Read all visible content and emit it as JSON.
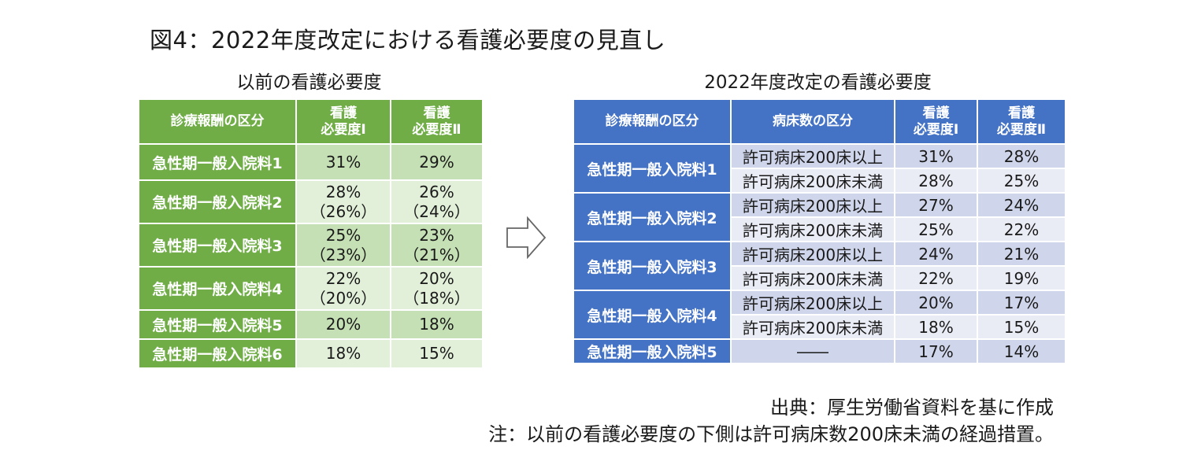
{
  "title": "図4：2022年度改定における看護必要度の見直し",
  "left_table": {
    "subtitle": "以前の看護必要度",
    "headers": [
      "診療報酬の区分",
      "看護\n必要度Ⅰ",
      "看護\n必要度Ⅱ"
    ],
    "rows": [
      {
        "category": "急性期一般入院料1",
        "n1": "31%",
        "n2": "29%"
      },
      {
        "category": "急性期一般入院料2",
        "n1": "28%\n（26%）",
        "n2": "26%\n（24%）"
      },
      {
        "category": "急性期一般入院料3",
        "n1": "25%\n（23%）",
        "n2": "23%\n（21%）"
      },
      {
        "category": "急性期一般入院料4",
        "n1": "22%\n（20%）",
        "n2": "20%\n（18%）"
      },
      {
        "category": "急性期一般入院料5",
        "n1": "20%",
        "n2": "18%"
      },
      {
        "category": "急性期一般入院料6",
        "n1": "18%",
        "n2": "15%"
      }
    ]
  },
  "right_table": {
    "subtitle": "2022年度改定の看護必要度",
    "headers": [
      "診療報酬の区分",
      "病床数の区分",
      "看護\n必要度Ⅰ",
      "看護\n必要度Ⅱ"
    ],
    "groups": [
      {
        "category": "急性期一般入院料1",
        "rows": [
          {
            "beds": "許可病床200床以上",
            "n1": "31%",
            "n2": "28%"
          },
          {
            "beds": "許可病床200床未満",
            "n1": "28%",
            "n2": "25%"
          }
        ]
      },
      {
        "category": "急性期一般入院料2",
        "rows": [
          {
            "beds": "許可病床200床以上",
            "n1": "27%",
            "n2": "24%"
          },
          {
            "beds": "許可病床200床未満",
            "n1": "25%",
            "n2": "22%"
          }
        ]
      },
      {
        "category": "急性期一般入院料3",
        "rows": [
          {
            "beds": "許可病床200床以上",
            "n1": "24%",
            "n2": "21%"
          },
          {
            "beds": "許可病床200床未満",
            "n1": "22%",
            "n2": "19%"
          }
        ]
      },
      {
        "category": "急性期一般入院料4",
        "rows": [
          {
            "beds": "許可病床200床以上",
            "n1": "20%",
            "n2": "17%"
          },
          {
            "beds": "許可病床200床未満",
            "n1": "18%",
            "n2": "15%"
          }
        ]
      },
      {
        "category": "急性期一般入院料5",
        "rows": [
          {
            "beds": "――",
            "n1": "17%",
            "n2": "14%"
          }
        ]
      }
    ]
  },
  "arrow_icon": "right-arrow-icon",
  "source": "出典：厚生労働省資料を基に作成",
  "note": "注：以前の看護必要度の下側は許可病床数200床未満の経過措置。",
  "colors": {
    "green_header": "#70ad47",
    "green_dark": "#c5e0b4",
    "green_light": "#e2f0d9",
    "blue_header": "#4472c4",
    "blue_dark": "#cfd5ea",
    "blue_light": "#e9ebf5"
  }
}
